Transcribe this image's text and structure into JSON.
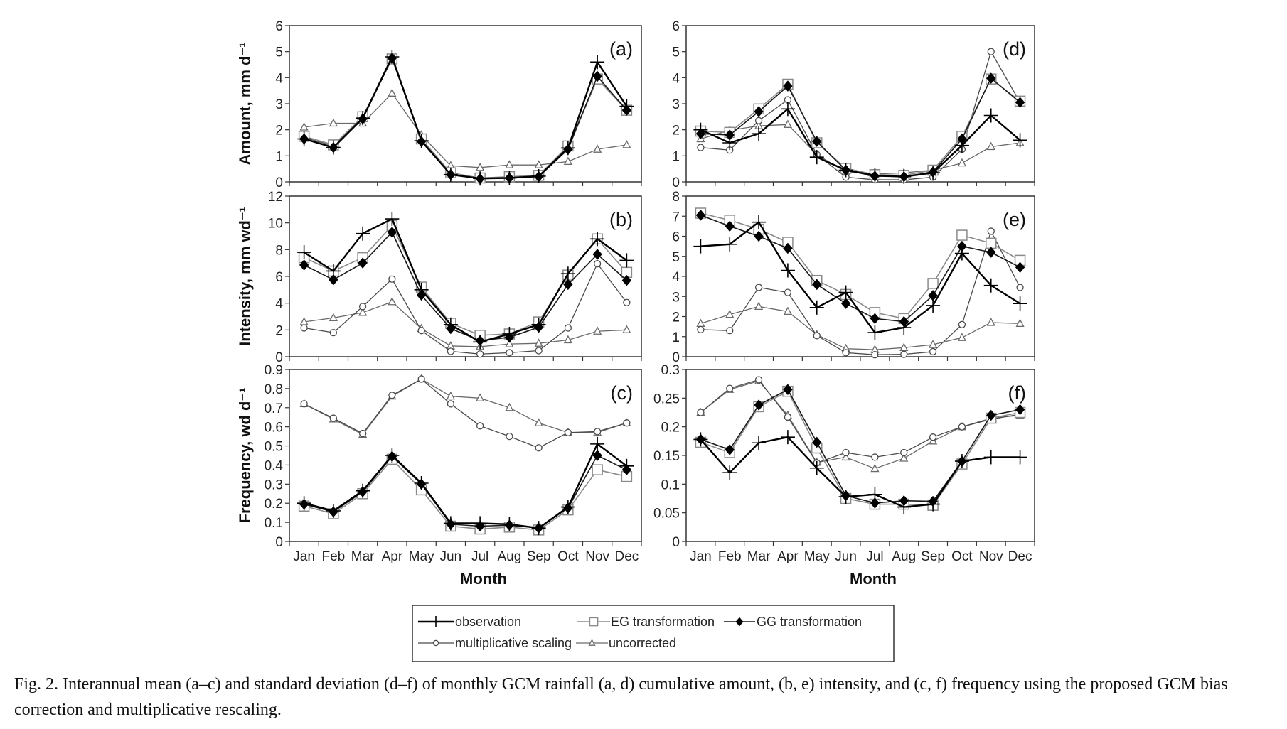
{
  "figure": {
    "caption": "Fig. 2.  Interannual mean (a–c) and standard deviation (d–f) of monthly GCM rainfall (a, d) cumulative amount, (b, e) intensity, and (c, f) frequency using the proposed GCM bias correction and multiplicative rescaling.",
    "xlabel": "Month"
  },
  "legend": {
    "items": [
      {
        "key": "observation",
        "label": "observation",
        "marker": "plus",
        "color": "#000000"
      },
      {
        "key": "eg",
        "label": "EG transformation",
        "marker": "square-open",
        "color": "#888888"
      },
      {
        "key": "gg",
        "label": "GG transformation",
        "marker": "diamond-filled",
        "color": "#222222"
      },
      {
        "key": "ms",
        "label": "multiplicative scaling",
        "marker": "circle-open",
        "color": "#555555"
      },
      {
        "key": "unc",
        "label": "uncorrected",
        "marker": "triangle-open",
        "color": "#666666"
      }
    ]
  },
  "chart_data": [
    {
      "id": "a",
      "panel_label": "(a)",
      "type": "line",
      "ylabel": "Amount, mm d⁻¹",
      "ylim": [
        0,
        6
      ],
      "yticks": [
        "0",
        "1",
        "2",
        "3",
        "4",
        "5",
        "6"
      ],
      "categories": [
        "Jan",
        "Feb",
        "Mar",
        "Apr",
        "May",
        "Jun",
        "Jul",
        "Aug",
        "Sep",
        "Oct",
        "Nov",
        "Dec"
      ],
      "series": [
        {
          "key": "unc",
          "name": "uncorrected",
          "values": [
            2.1,
            2.25,
            2.25,
            3.4,
            1.8,
            0.62,
            0.55,
            0.65,
            0.65,
            0.78,
            1.25,
            1.42
          ]
        },
        {
          "key": "ms",
          "name": "multiplicative scaling",
          "values": [
            1.7,
            1.38,
            2.45,
            4.78,
            1.62,
            0.3,
            0.15,
            0.18,
            0.22,
            1.3,
            3.95,
            2.8
          ]
        },
        {
          "key": "eg",
          "name": "EG transformation",
          "values": [
            1.75,
            1.42,
            2.5,
            4.72,
            1.65,
            0.35,
            0.15,
            0.2,
            0.25,
            1.38,
            3.95,
            2.75
          ]
        },
        {
          "key": "gg",
          "name": "GG transformation",
          "values": [
            1.65,
            1.32,
            2.42,
            4.75,
            1.55,
            0.28,
            0.12,
            0.15,
            0.2,
            1.25,
            4.05,
            2.75
          ]
        },
        {
          "key": "observation",
          "name": "observation",
          "values": [
            1.65,
            1.32,
            2.45,
            4.8,
            1.58,
            0.28,
            0.13,
            0.15,
            0.22,
            1.3,
            4.6,
            2.9
          ]
        }
      ]
    },
    {
      "id": "b",
      "panel_label": "(b)",
      "type": "line",
      "ylabel": "Intensity, mm wd⁻¹",
      "ylim": [
        0,
        12
      ],
      "yticks": [
        "0",
        "2",
        "4",
        "6",
        "8",
        "10",
        "12"
      ],
      "categories": [
        "Jan",
        "Feb",
        "Mar",
        "Apr",
        "May",
        "Jun",
        "Jul",
        "Aug",
        "Sep",
        "Oct",
        "Nov",
        "Dec"
      ],
      "series": [
        {
          "key": "unc",
          "name": "uncorrected",
          "values": [
            2.6,
            2.9,
            3.3,
            4.1,
            2.1,
            0.8,
            0.75,
            0.95,
            1.0,
            1.25,
            1.9,
            2.0
          ]
        },
        {
          "key": "ms",
          "name": "multiplicative scaling",
          "values": [
            2.15,
            1.8,
            3.75,
            5.8,
            1.95,
            0.4,
            0.2,
            0.3,
            0.45,
            2.15,
            6.95,
            4.05
          ]
        },
        {
          "key": "eg",
          "name": "EG transformation",
          "values": [
            7.4,
            6.4,
            7.4,
            9.8,
            5.2,
            2.5,
            1.6,
            1.7,
            2.6,
            6.1,
            8.8,
            6.3
          ]
        },
        {
          "key": "gg",
          "name": "GG transformation",
          "values": [
            6.85,
            5.75,
            7.0,
            9.3,
            4.6,
            2.1,
            1.2,
            1.45,
            2.2,
            5.4,
            7.65,
            5.7
          ]
        },
        {
          "key": "observation",
          "name": "observation",
          "values": [
            7.8,
            6.4,
            9.2,
            10.3,
            5.0,
            2.4,
            1.1,
            1.7,
            2.4,
            6.2,
            8.8,
            7.2
          ]
        }
      ]
    },
    {
      "id": "c",
      "panel_label": "(c)",
      "type": "line",
      "ylabel": "Frequency, wd d⁻¹",
      "ylim": [
        0,
        0.9
      ],
      "yticks": [
        "0",
        "0.1",
        "0.2",
        "0.3",
        "0.4",
        "0.5",
        "0.6",
        "0.7",
        "0.8",
        "0.9"
      ],
      "categories": [
        "Jan",
        "Feb",
        "Mar",
        "Apr",
        "May",
        "Jun",
        "Jul",
        "Aug",
        "Sep",
        "Oct",
        "Nov",
        "Dec"
      ],
      "series": [
        {
          "key": "unc",
          "name": "uncorrected",
          "values": [
            0.72,
            0.64,
            0.56,
            0.76,
            0.85,
            0.76,
            0.75,
            0.7,
            0.62,
            0.57,
            0.57,
            0.62
          ]
        },
        {
          "key": "ms",
          "name": "multiplicative scaling",
          "values": [
            0.72,
            0.645,
            0.565,
            0.765,
            0.85,
            0.72,
            0.605,
            0.55,
            0.49,
            0.57,
            0.575,
            0.62
          ]
        },
        {
          "key": "eg",
          "name": "EG transformation",
          "values": [
            0.185,
            0.145,
            0.25,
            0.43,
            0.27,
            0.08,
            0.065,
            0.075,
            0.06,
            0.165,
            0.375,
            0.34
          ]
        },
        {
          "key": "gg",
          "name": "GG transformation",
          "values": [
            0.195,
            0.155,
            0.26,
            0.445,
            0.3,
            0.09,
            0.08,
            0.085,
            0.07,
            0.175,
            0.45,
            0.375
          ]
        },
        {
          "key": "observation",
          "name": "observation",
          "values": [
            0.2,
            0.16,
            0.265,
            0.45,
            0.305,
            0.095,
            0.095,
            0.09,
            0.07,
            0.18,
            0.51,
            0.395
          ]
        }
      ]
    },
    {
      "id": "d",
      "panel_label": "(d)",
      "type": "line",
      "ylabel": "",
      "ylim": [
        0,
        6
      ],
      "yticks": [
        "0",
        "1",
        "2",
        "3",
        "4",
        "5",
        "6"
      ],
      "categories": [
        "Jan",
        "Feb",
        "Mar",
        "Apr",
        "May",
        "Jun",
        "Jul",
        "Aug",
        "Sep",
        "Oct",
        "Nov",
        "Dec"
      ],
      "series": [
        {
          "key": "unc",
          "name": "uncorrected",
          "values": [
            1.65,
            1.98,
            2.15,
            2.2,
            1.05,
            0.38,
            0.3,
            0.35,
            0.45,
            0.72,
            1.35,
            1.5
          ]
        },
        {
          "key": "ms",
          "name": "multiplicative scaling",
          "values": [
            1.32,
            1.22,
            2.35,
            3.15,
            1.05,
            0.18,
            0.08,
            0.08,
            0.18,
            1.25,
            5.0,
            3.05
          ]
        },
        {
          "key": "eg",
          "name": "EG transformation",
          "values": [
            1.95,
            1.9,
            2.8,
            3.75,
            1.5,
            0.52,
            0.28,
            0.25,
            0.45,
            1.75,
            3.95,
            3.1
          ]
        },
        {
          "key": "gg",
          "name": "GG transformation",
          "values": [
            1.85,
            1.8,
            2.7,
            3.68,
            1.55,
            0.45,
            0.22,
            0.2,
            0.38,
            1.65,
            3.98,
            3.05
          ]
        },
        {
          "key": "observation",
          "name": "observation",
          "values": [
            2.0,
            1.5,
            1.85,
            2.8,
            0.95,
            0.45,
            0.25,
            0.2,
            0.35,
            1.4,
            2.55,
            1.6
          ]
        }
      ]
    },
    {
      "id": "e",
      "panel_label": "(e)",
      "type": "line",
      "ylabel": "",
      "ylim": [
        0,
        8
      ],
      "yticks": [
        "0",
        "1",
        "2",
        "3",
        "4",
        "5",
        "6",
        "7",
        "8"
      ],
      "categories": [
        "Jan",
        "Feb",
        "Mar",
        "Apr",
        "May",
        "Jun",
        "Jul",
        "Aug",
        "Sep",
        "Oct",
        "Nov",
        "Dec"
      ],
      "series": [
        {
          "key": "unc",
          "name": "uncorrected",
          "values": [
            1.65,
            2.1,
            2.5,
            2.25,
            1.1,
            0.4,
            0.35,
            0.45,
            0.6,
            0.95,
            1.7,
            1.65
          ]
        },
        {
          "key": "ms",
          "name": "multiplicative scaling",
          "values": [
            1.35,
            1.3,
            3.45,
            3.2,
            1.05,
            0.2,
            0.1,
            0.12,
            0.25,
            1.6,
            6.25,
            3.45
          ]
        },
        {
          "key": "eg",
          "name": "EG transformation",
          "values": [
            7.15,
            6.8,
            6.35,
            5.7,
            3.8,
            3.1,
            2.2,
            1.9,
            3.65,
            6.05,
            5.65,
            4.8
          ]
        },
        {
          "key": "gg",
          "name": "GG transformation",
          "values": [
            7.05,
            6.5,
            6.0,
            5.4,
            3.6,
            2.65,
            1.9,
            1.75,
            3.05,
            5.5,
            5.2,
            4.45
          ]
        },
        {
          "key": "observation",
          "name": "observation",
          "values": [
            5.5,
            5.6,
            6.7,
            4.3,
            2.45,
            3.2,
            1.2,
            1.45,
            2.55,
            5.15,
            3.55,
            2.65
          ]
        }
      ]
    },
    {
      "id": "f",
      "panel_label": "(f)",
      "type": "line",
      "ylabel": "",
      "ylim": [
        0,
        0.3
      ],
      "yticks": [
        "0",
        "0.05",
        "0.1",
        "0.15",
        "0.2",
        "0.25",
        "0.3"
      ],
      "categories": [
        "Jan",
        "Feb",
        "Mar",
        "Apr",
        "May",
        "Jun",
        "Jul",
        "Aug",
        "Sep",
        "Oct",
        "Nov",
        "Dec"
      ],
      "series": [
        {
          "key": "unc",
          "name": "uncorrected",
          "values": [
            0.225,
            0.265,
            0.28,
            0.22,
            0.138,
            0.147,
            0.127,
            0.145,
            0.175,
            0.2,
            0.215,
            0.22
          ]
        },
        {
          "key": "ms",
          "name": "multiplicative scaling",
          "values": [
            0.225,
            0.267,
            0.282,
            0.217,
            0.137,
            0.155,
            0.147,
            0.155,
            0.182,
            0.2,
            0.213,
            0.222
          ]
        },
        {
          "key": "eg",
          "name": "EG transformation",
          "values": [
            0.173,
            0.155,
            0.235,
            0.262,
            0.163,
            0.075,
            0.065,
            0.065,
            0.063,
            0.135,
            0.215,
            0.225
          ]
        },
        {
          "key": "gg",
          "name": "GG transformation",
          "values": [
            0.178,
            0.16,
            0.238,
            0.265,
            0.173,
            0.08,
            0.067,
            0.071,
            0.07,
            0.14,
            0.22,
            0.23
          ]
        },
        {
          "key": "observation",
          "name": "observation",
          "values": [
            0.178,
            0.12,
            0.172,
            0.182,
            0.128,
            0.078,
            0.082,
            0.06,
            0.065,
            0.14,
            0.147,
            0.147
          ]
        }
      ]
    }
  ]
}
